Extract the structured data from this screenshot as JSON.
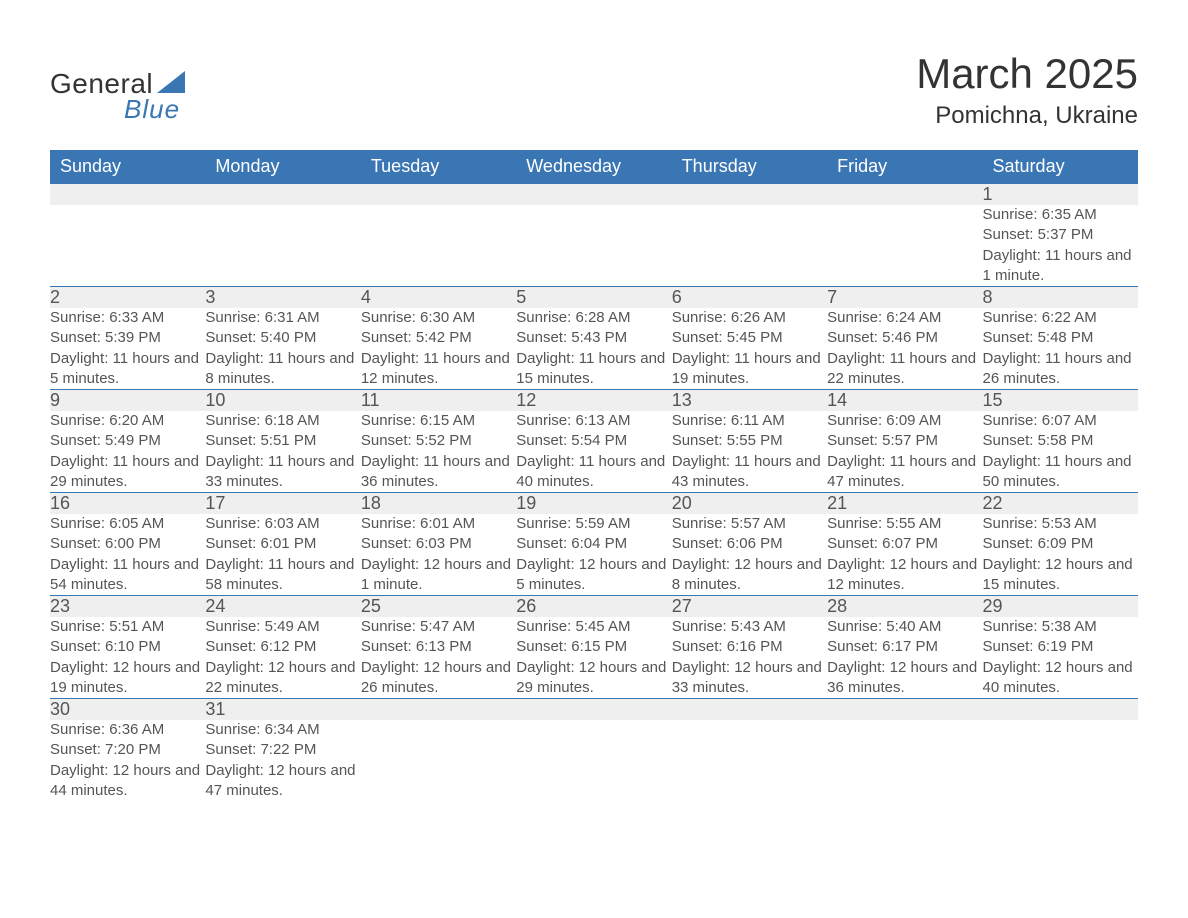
{
  "logo": {
    "text1": "General",
    "text2": "Blue"
  },
  "title": "March 2025",
  "location": "Pomichna, Ukraine",
  "colors": {
    "header_bg": "#3a76b4",
    "header_text": "#ffffff",
    "daynum_bg": "#efefef",
    "text": "#555555",
    "logo_blue": "#3a76b4"
  },
  "type": "calendar-table",
  "dayHeaders": [
    "Sunday",
    "Monday",
    "Tuesday",
    "Wednesday",
    "Thursday",
    "Friday",
    "Saturday"
  ],
  "weeks": [
    [
      null,
      null,
      null,
      null,
      null,
      null,
      {
        "n": "1",
        "sr": "Sunrise: 6:35 AM",
        "ss": "Sunset: 5:37 PM",
        "dl": "Daylight: 11 hours and 1 minute."
      }
    ],
    [
      {
        "n": "2",
        "sr": "Sunrise: 6:33 AM",
        "ss": "Sunset: 5:39 PM",
        "dl": "Daylight: 11 hours and 5 minutes."
      },
      {
        "n": "3",
        "sr": "Sunrise: 6:31 AM",
        "ss": "Sunset: 5:40 PM",
        "dl": "Daylight: 11 hours and 8 minutes."
      },
      {
        "n": "4",
        "sr": "Sunrise: 6:30 AM",
        "ss": "Sunset: 5:42 PM",
        "dl": "Daylight: 11 hours and 12 minutes."
      },
      {
        "n": "5",
        "sr": "Sunrise: 6:28 AM",
        "ss": "Sunset: 5:43 PM",
        "dl": "Daylight: 11 hours and 15 minutes."
      },
      {
        "n": "6",
        "sr": "Sunrise: 6:26 AM",
        "ss": "Sunset: 5:45 PM",
        "dl": "Daylight: 11 hours and 19 minutes."
      },
      {
        "n": "7",
        "sr": "Sunrise: 6:24 AM",
        "ss": "Sunset: 5:46 PM",
        "dl": "Daylight: 11 hours and 22 minutes."
      },
      {
        "n": "8",
        "sr": "Sunrise: 6:22 AM",
        "ss": "Sunset: 5:48 PM",
        "dl": "Daylight: 11 hours and 26 minutes."
      }
    ],
    [
      {
        "n": "9",
        "sr": "Sunrise: 6:20 AM",
        "ss": "Sunset: 5:49 PM",
        "dl": "Daylight: 11 hours and 29 minutes."
      },
      {
        "n": "10",
        "sr": "Sunrise: 6:18 AM",
        "ss": "Sunset: 5:51 PM",
        "dl": "Daylight: 11 hours and 33 minutes."
      },
      {
        "n": "11",
        "sr": "Sunrise: 6:15 AM",
        "ss": "Sunset: 5:52 PM",
        "dl": "Daylight: 11 hours and 36 minutes."
      },
      {
        "n": "12",
        "sr": "Sunrise: 6:13 AM",
        "ss": "Sunset: 5:54 PM",
        "dl": "Daylight: 11 hours and 40 minutes."
      },
      {
        "n": "13",
        "sr": "Sunrise: 6:11 AM",
        "ss": "Sunset: 5:55 PM",
        "dl": "Daylight: 11 hours and 43 minutes."
      },
      {
        "n": "14",
        "sr": "Sunrise: 6:09 AM",
        "ss": "Sunset: 5:57 PM",
        "dl": "Daylight: 11 hours and 47 minutes."
      },
      {
        "n": "15",
        "sr": "Sunrise: 6:07 AM",
        "ss": "Sunset: 5:58 PM",
        "dl": "Daylight: 11 hours and 50 minutes."
      }
    ],
    [
      {
        "n": "16",
        "sr": "Sunrise: 6:05 AM",
        "ss": "Sunset: 6:00 PM",
        "dl": "Daylight: 11 hours and 54 minutes."
      },
      {
        "n": "17",
        "sr": "Sunrise: 6:03 AM",
        "ss": "Sunset: 6:01 PM",
        "dl": "Daylight: 11 hours and 58 minutes."
      },
      {
        "n": "18",
        "sr": "Sunrise: 6:01 AM",
        "ss": "Sunset: 6:03 PM",
        "dl": "Daylight: 12 hours and 1 minute."
      },
      {
        "n": "19",
        "sr": "Sunrise: 5:59 AM",
        "ss": "Sunset: 6:04 PM",
        "dl": "Daylight: 12 hours and 5 minutes."
      },
      {
        "n": "20",
        "sr": "Sunrise: 5:57 AM",
        "ss": "Sunset: 6:06 PM",
        "dl": "Daylight: 12 hours and 8 minutes."
      },
      {
        "n": "21",
        "sr": "Sunrise: 5:55 AM",
        "ss": "Sunset: 6:07 PM",
        "dl": "Daylight: 12 hours and 12 minutes."
      },
      {
        "n": "22",
        "sr": "Sunrise: 5:53 AM",
        "ss": "Sunset: 6:09 PM",
        "dl": "Daylight: 12 hours and 15 minutes."
      }
    ],
    [
      {
        "n": "23",
        "sr": "Sunrise: 5:51 AM",
        "ss": "Sunset: 6:10 PM",
        "dl": "Daylight: 12 hours and 19 minutes."
      },
      {
        "n": "24",
        "sr": "Sunrise: 5:49 AM",
        "ss": "Sunset: 6:12 PM",
        "dl": "Daylight: 12 hours and 22 minutes."
      },
      {
        "n": "25",
        "sr": "Sunrise: 5:47 AM",
        "ss": "Sunset: 6:13 PM",
        "dl": "Daylight: 12 hours and 26 minutes."
      },
      {
        "n": "26",
        "sr": "Sunrise: 5:45 AM",
        "ss": "Sunset: 6:15 PM",
        "dl": "Daylight: 12 hours and 29 minutes."
      },
      {
        "n": "27",
        "sr": "Sunrise: 5:43 AM",
        "ss": "Sunset: 6:16 PM",
        "dl": "Daylight: 12 hours and 33 minutes."
      },
      {
        "n": "28",
        "sr": "Sunrise: 5:40 AM",
        "ss": "Sunset: 6:17 PM",
        "dl": "Daylight: 12 hours and 36 minutes."
      },
      {
        "n": "29",
        "sr": "Sunrise: 5:38 AM",
        "ss": "Sunset: 6:19 PM",
        "dl": "Daylight: 12 hours and 40 minutes."
      }
    ],
    [
      {
        "n": "30",
        "sr": "Sunrise: 6:36 AM",
        "ss": "Sunset: 7:20 PM",
        "dl": "Daylight: 12 hours and 44 minutes."
      },
      {
        "n": "31",
        "sr": "Sunrise: 6:34 AM",
        "ss": "Sunset: 7:22 PM",
        "dl": "Daylight: 12 hours and 47 minutes."
      },
      null,
      null,
      null,
      null,
      null
    ]
  ]
}
